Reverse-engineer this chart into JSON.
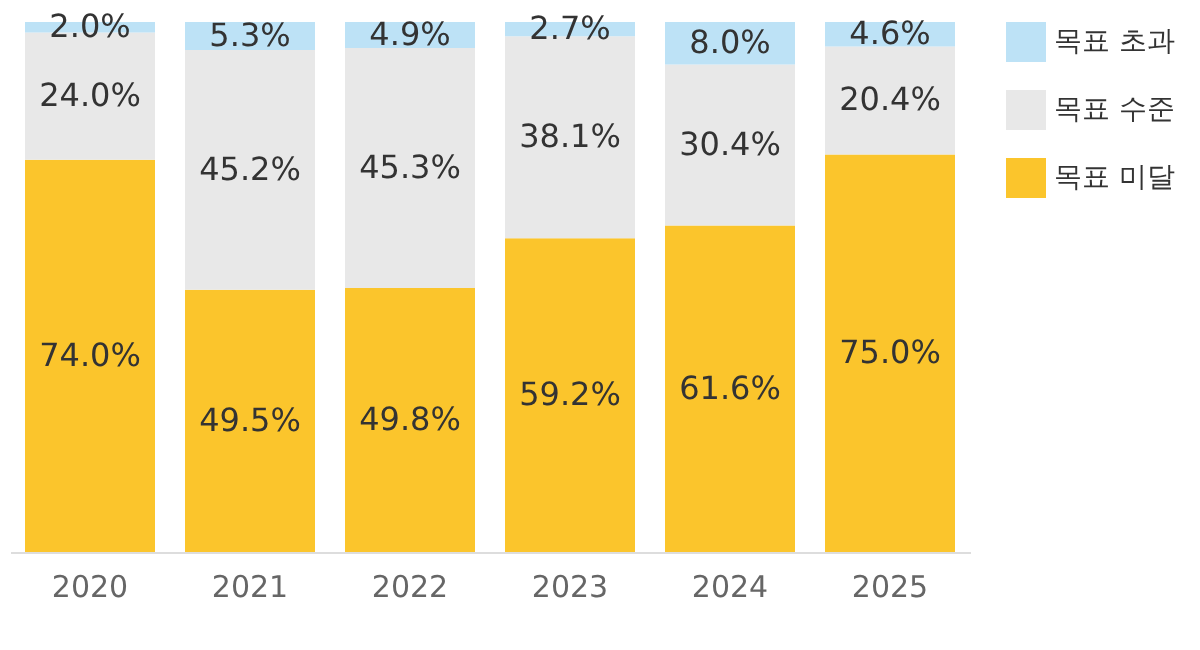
{
  "chart_data": {
    "type": "bar",
    "stacked": true,
    "categories": [
      "2020",
      "2021",
      "2022",
      "2023",
      "2024",
      "2025"
    ],
    "series": [
      {
        "name": "목표 미달",
        "color": "#fbc52c",
        "values": [
          74.0,
          49.5,
          49.8,
          59.2,
          61.6,
          75.0
        ],
        "value_labels": [
          "74.0%",
          "49.5%",
          "49.8%",
          "59.2%",
          "61.6%",
          "75.0%"
        ]
      },
      {
        "name": "목표 수준",
        "color": "#e8e8e8",
        "values": [
          24.0,
          45.2,
          45.3,
          38.1,
          30.4,
          20.4
        ],
        "value_labels": [
          "24.0%",
          "45.2%",
          "45.3%",
          "38.1%",
          "30.4%",
          "20.4%"
        ]
      },
      {
        "name": "목표 초과",
        "color": "#bde2f6",
        "values": [
          2.0,
          5.3,
          4.9,
          2.7,
          8.0,
          4.6
        ],
        "value_labels": [
          "2.0%",
          "5.3%",
          "4.9%",
          "2.7%",
          "8.0%",
          "4.6%"
        ]
      }
    ],
    "legend": "right",
    "grid": false
  }
}
